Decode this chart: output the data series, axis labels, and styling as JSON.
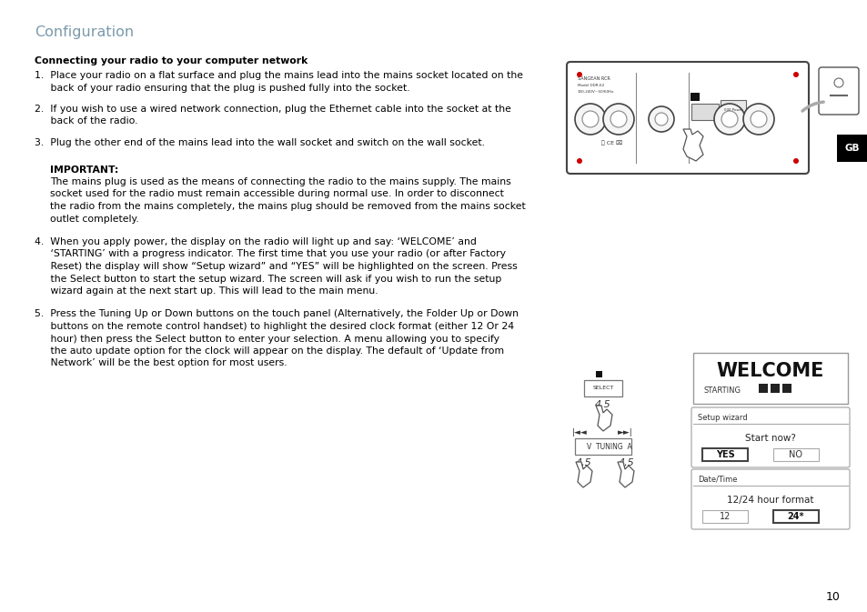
{
  "title": "Configuration",
  "title_color": "#7a9aaa",
  "bg_color": "#ffffff",
  "page_number": "10",
  "heading": "Connecting your radio to your computer network",
  "item1a": "1.  Place your radio on a flat surface and plug the mains lead into the mains socket located on the",
  "item1b": "     back of your radio ensuring that the plug is pushed fully into the socket.",
  "item2a": "2.  If you wish to use a wired network connection, plug the Ethernet cable into the socket at the",
  "item2b": "     back of the radio.",
  "item3": "3.  Plug the other end of the mains lead into the wall socket and switch on the wall socket.",
  "important_heading": "IMPORTANT:",
  "imp1": "The mains plug is used as the means of connecting the radio to the mains supply. The mains",
  "imp2": "socket used for the radio must remain accessible during normal use. In order to disconnect",
  "imp3": "the radio from the mains completely, the mains plug should be removed from the mains socket",
  "imp4": "outlet completely.",
  "item4a": "4.  When you apply power, the display on the radio will light up and say: ‘WELCOME’ and",
  "item4b": "     ‘STARTING’ with a progress indicator. The first time that you use your radio (or after Factory",
  "item4c": "     Reset) the display will show “Setup wizard” and “YES” will be highlighted on the screen. Press",
  "item4d": "     the Select button to start the setup wizard. The screen will ask if you wish to run the setup",
  "item4e": "     wizard again at the next start up. This will lead to the main menu.",
  "item5a": "5.  Press the Tuning Up or Down buttons on the touch panel (Alternatively, the Folder Up or Down",
  "item5b": "     buttons on the remote control handset) to highlight the desired clock format (either 12 Or 24",
  "item5c": "     hour) then press the Select button to enter your selection. A menu allowing you to specify",
  "item5d": "     the auto update option for the clock will appear on the display. The default of ‘Update from",
  "item5e": "     Network’ will be the best option for most users.",
  "gb_label": "GB",
  "text_color": "#000000"
}
